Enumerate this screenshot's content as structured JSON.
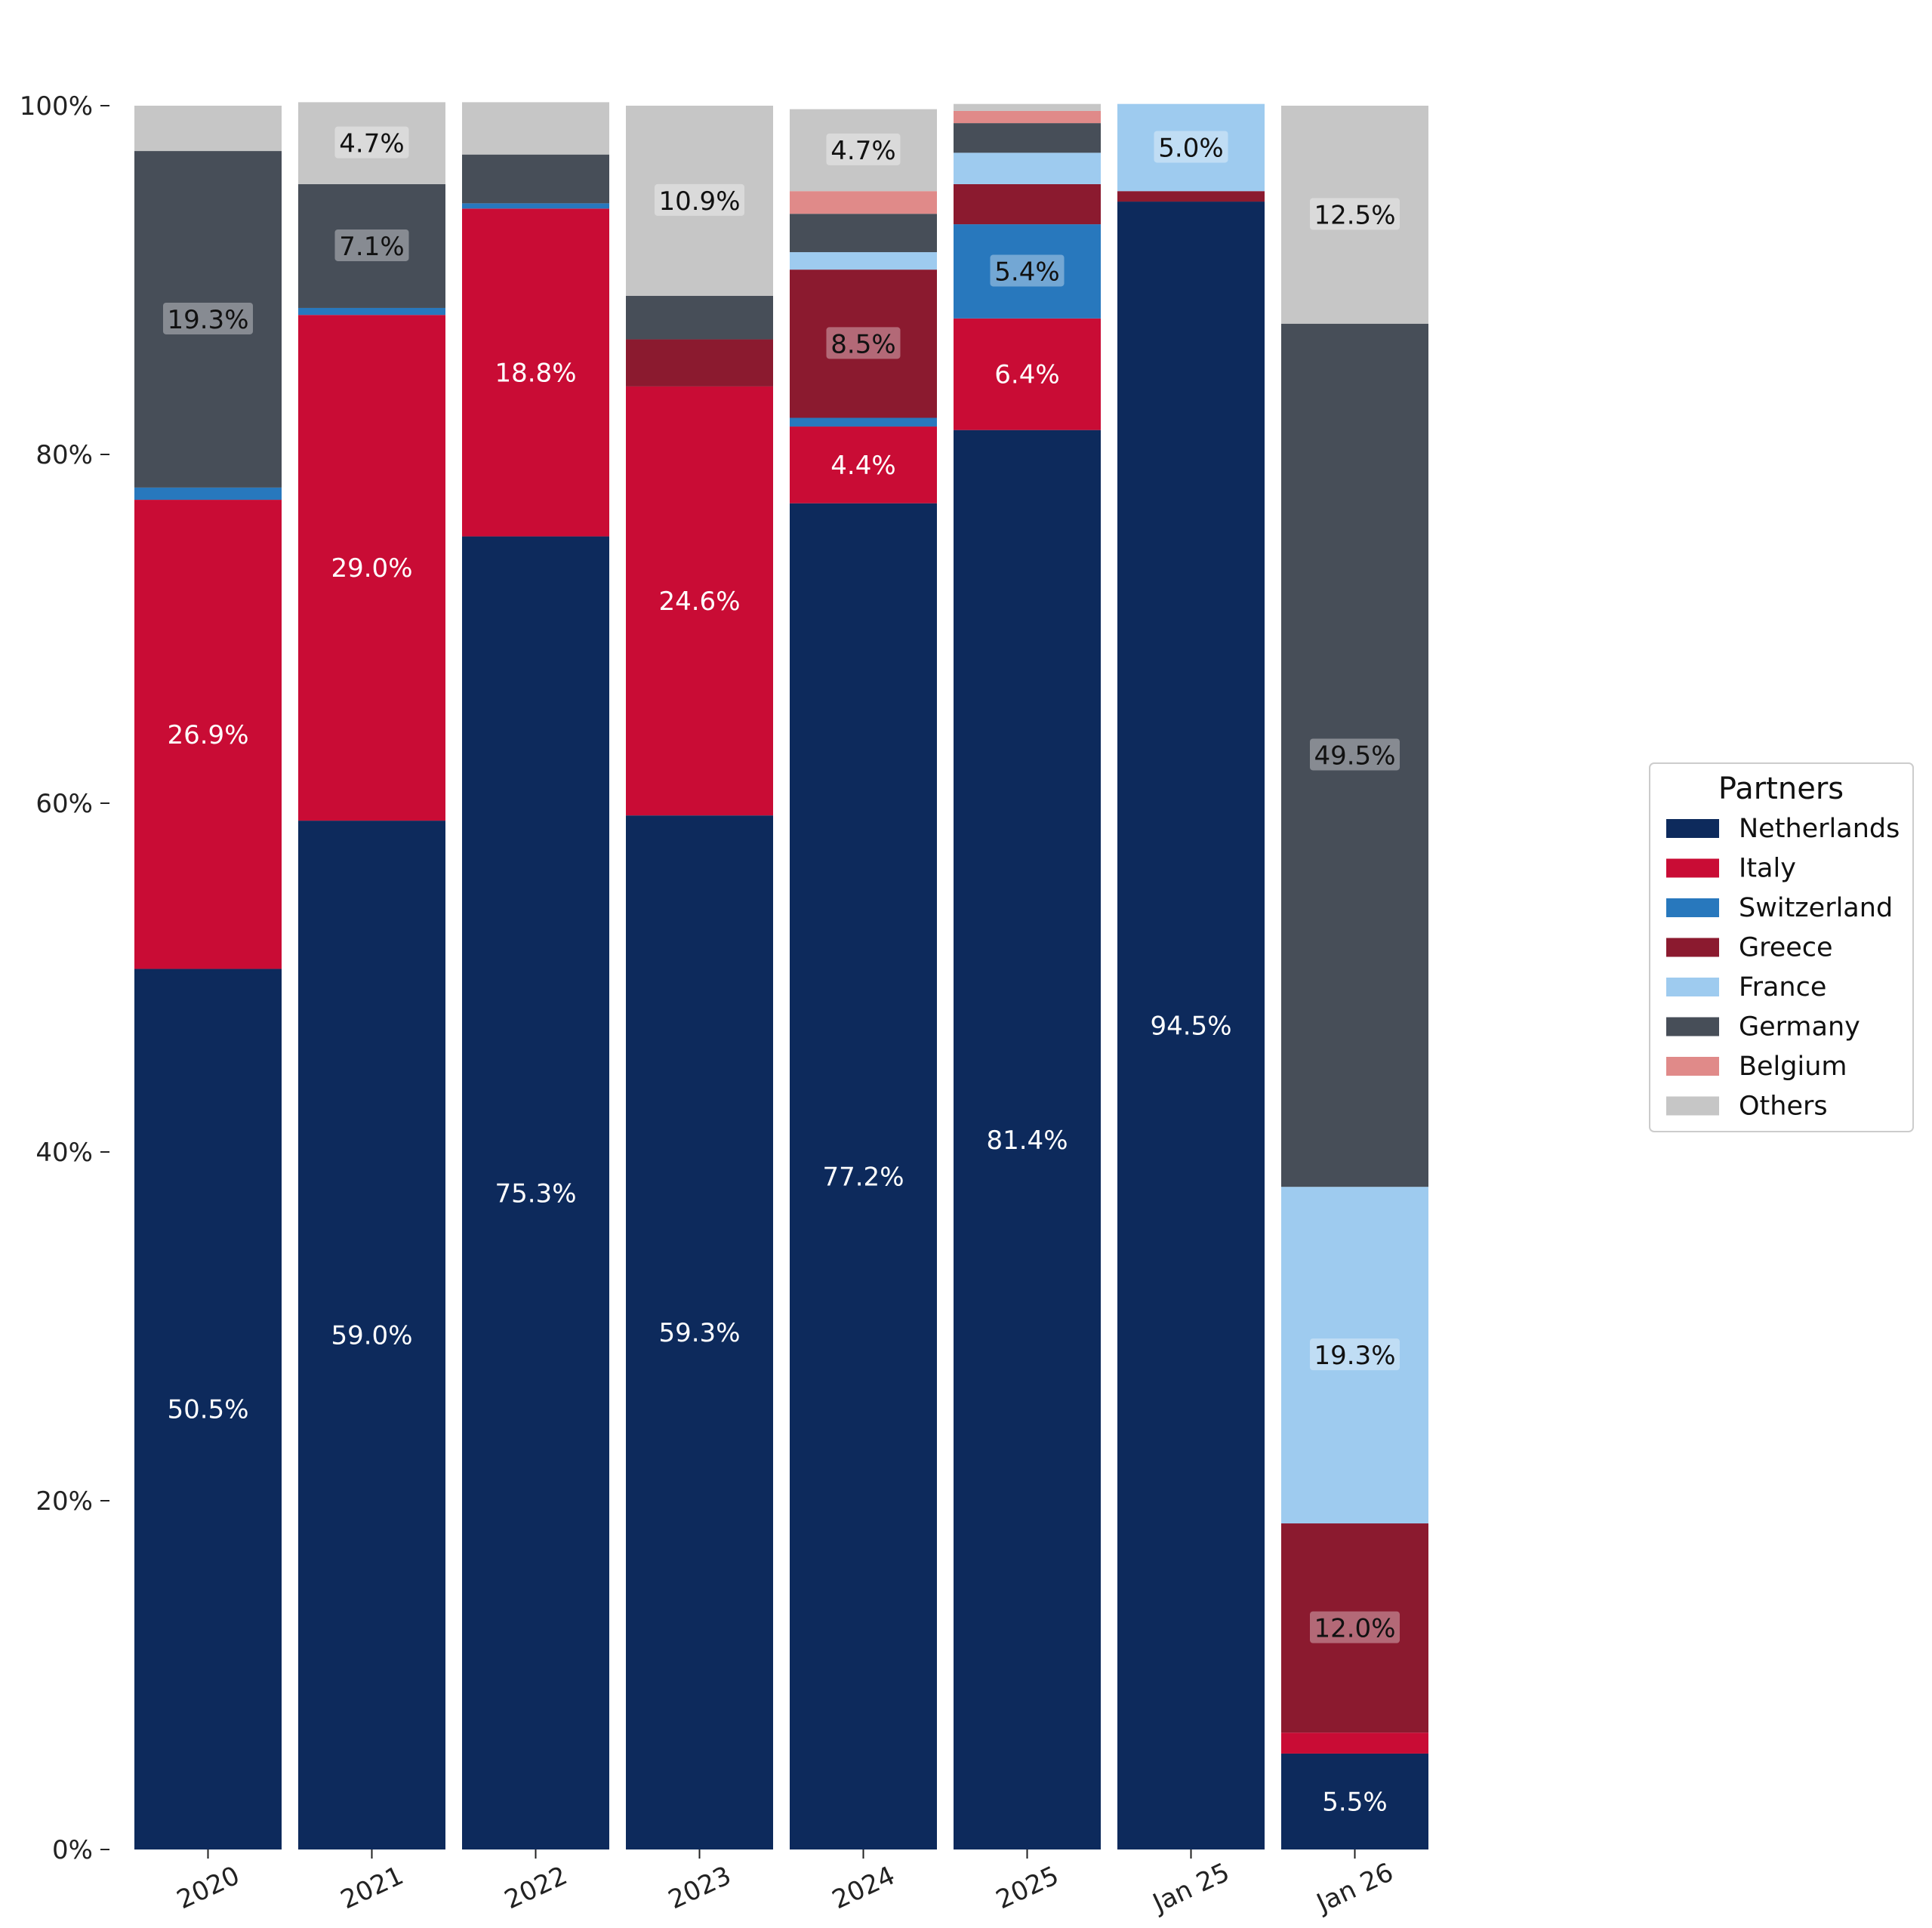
{
  "chart_data": {
    "type": "bar",
    "stacked": true,
    "normalized": true,
    "categories": [
      "2020",
      "2021",
      "2022",
      "2023",
      "2024",
      "2025",
      "Jan 25",
      "Jan 26"
    ],
    "ylim": [
      0,
      100
    ],
    "yticks": [
      "0%",
      "20%",
      "40%",
      "60%",
      "80%",
      "100%"
    ],
    "grid": false,
    "legend": {
      "title": "Partners",
      "placement": "right"
    },
    "series": [
      {
        "name": "Netherlands",
        "color": "#0d2a5c",
        "values": [
          50.5,
          59.0,
          75.3,
          59.3,
          77.2,
          81.4,
          94.5,
          5.5
        ],
        "labels": [
          "50.5%",
          "59.0%",
          "75.3%",
          "59.3%",
          "77.2%",
          "81.4%",
          "94.5%",
          "5.5%"
        ]
      },
      {
        "name": "Italy",
        "color": "#c90c35",
        "values": [
          26.9,
          29.0,
          18.8,
          24.6,
          4.4,
          6.4,
          0.0,
          1.2
        ],
        "labels": [
          "26.9%",
          "29.0%",
          "18.8%",
          "24.6%",
          "4.4%",
          "6.4%",
          "",
          ""
        ]
      },
      {
        "name": "Switzerland",
        "color": "#2878bd",
        "values": [
          0.7,
          0.4,
          0.3,
          0.0,
          0.5,
          5.4,
          0.0,
          0.0
        ],
        "labels": [
          "",
          "",
          "",
          "",
          "",
          "5.4%",
          "",
          ""
        ]
      },
      {
        "name": "Greece",
        "color": "#8b1a2f",
        "values": [
          0.0,
          0.0,
          0.0,
          2.7,
          8.5,
          2.3,
          0.6,
          12.0
        ],
        "labels": [
          "",
          "",
          "",
          "",
          "8.5%",
          "",
          "",
          "12.0%"
        ]
      },
      {
        "name": "France",
        "color": "#9ecbef",
        "values": [
          0.0,
          0.0,
          0.0,
          0.0,
          1.0,
          1.8,
          5.0,
          19.3
        ],
        "labels": [
          "",
          "",
          "",
          "",
          "",
          "",
          "5.0%",
          "19.3%"
        ]
      },
      {
        "name": "Germany",
        "color": "#474e58",
        "values": [
          19.3,
          7.1,
          2.8,
          2.5,
          2.2,
          1.7,
          0.0,
          49.5
        ],
        "labels": [
          "19.3%",
          "7.1%",
          "",
          "",
          "",
          "",
          "",
          "49.5%"
        ]
      },
      {
        "name": "Belgium",
        "color": "#e08a89",
        "values": [
          0.0,
          0.0,
          0.0,
          0.0,
          1.3,
          0.7,
          0.0,
          0.0
        ],
        "labels": [
          "",
          "",
          "",
          "",
          "",
          "",
          "",
          ""
        ]
      },
      {
        "name": "Others",
        "color": "#c6c6c6",
        "values": [
          2.6,
          4.7,
          3.0,
          10.9,
          4.7,
          0.4,
          0.0,
          12.5
        ],
        "labels": [
          "",
          "4.7%",
          "",
          "10.9%",
          "4.7%",
          "",
          "",
          "12.5%"
        ]
      }
    ]
  }
}
